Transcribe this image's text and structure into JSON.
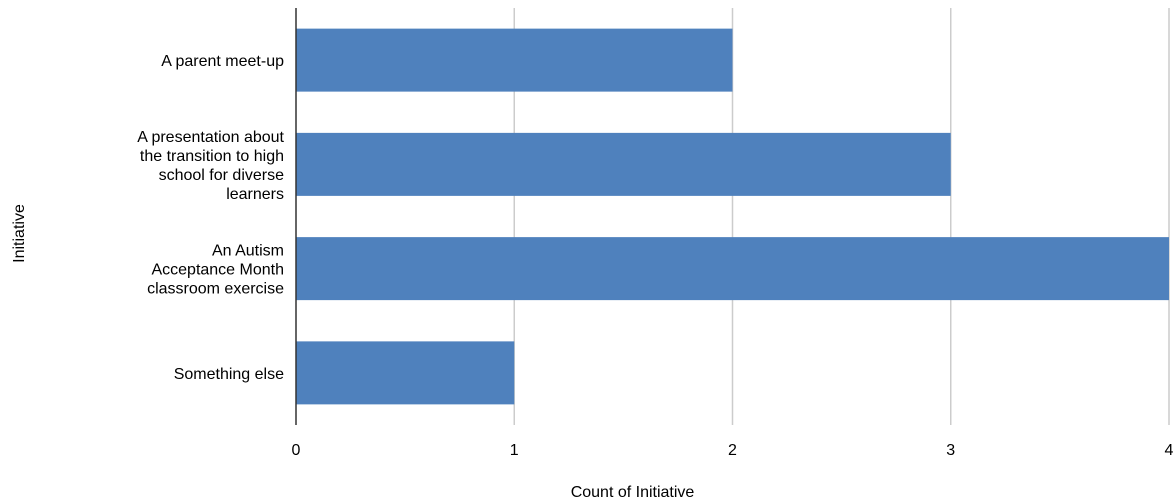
{
  "chart_data": {
    "type": "bar",
    "orientation": "horizontal",
    "categories": [
      "A parent meet-up",
      "A presentation about the transition to high school for diverse learners",
      "An Autism Acceptance Month classroom exercise",
      "Something else"
    ],
    "category_label_lines": [
      [
        "A parent meet-up"
      ],
      [
        "A presentation about",
        "the transition to high",
        "school for diverse",
        "learners"
      ],
      [
        "An Autism",
        "Acceptance Month",
        "classroom exercise"
      ],
      [
        "Something else"
      ]
    ],
    "values": [
      2,
      3,
      4,
      1
    ],
    "xlabel": "Count of Initiative",
    "ylabel": "Initiative",
    "xlim": [
      0,
      4
    ],
    "xticks": [
      "0",
      "1",
      "2",
      "3",
      "4"
    ],
    "grid": true,
    "bar_color": "#4f81bd",
    "grid_color": "#cccccc",
    "axis_color": "#333333"
  }
}
